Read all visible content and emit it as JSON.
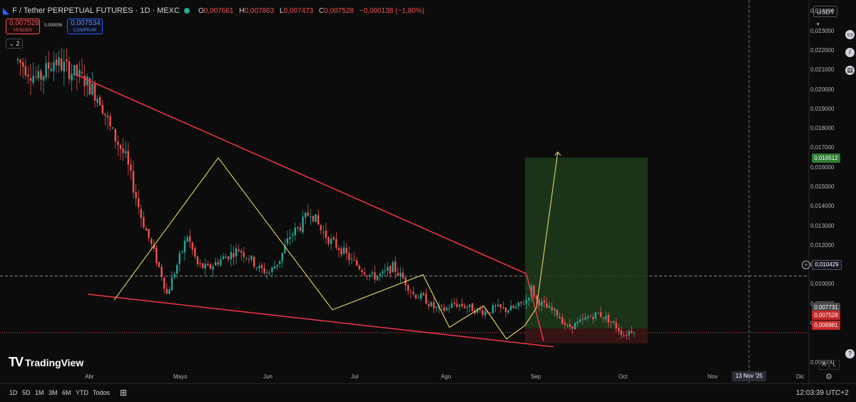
{
  "header": {
    "symbol": "F / Tether PERPETUAL FUTURES · 1D · MEXC",
    "ohlc": [
      {
        "key": "O",
        "value": "0,007661"
      },
      {
        "key": "H",
        "value": "0,007863"
      },
      {
        "key": "L",
        "value": "0,007473"
      },
      {
        "key": "C",
        "value": "0,007528"
      },
      {
        "key": "",
        "value": "−0,000138 (−1,80%)"
      }
    ],
    "sell_price": "0,007528",
    "sell_label": "VENDER",
    "buy_price": "0,007534",
    "buy_label": "COMPRAR",
    "spread": "0,000006",
    "indicator_count": "2"
  },
  "currency": "USDT",
  "price_axis": [
    "0,024000",
    "0,023000",
    "0,022000",
    "0,021000",
    "0,020000",
    "0,019000",
    "0,018000",
    "0,017000",
    "0,016000",
    "0,015000",
    "0,014000",
    "0,013000",
    "0,012000",
    "0,011000",
    "0,010000",
    "0,009000",
    "0,008000",
    "0,006000"
  ],
  "price_tags": {
    "target": "0,016512",
    "crosshair": "0,010429",
    "stop_top": "0,007731",
    "last": "0,007528",
    "stop": "0,006981"
  },
  "time_axis": [
    "Abr",
    "Mayo",
    "Jun",
    "Jul",
    "Ago",
    "Sep",
    "Oct",
    "Nov",
    "Dic"
  ],
  "time_highlight": "13 Nov '25",
  "ranges": [
    "1D",
    "5D",
    "1M",
    "3M",
    "6M",
    "YTD",
    "Todos"
  ],
  "clock": "12:03:39 UTC+2",
  "branding": "TradingView",
  "axis_buttons": [
    "A",
    "L"
  ],
  "colors": {
    "up": "#26a69a",
    "down": "#ef5350",
    "trend": "#f23645",
    "wave": "#e6d36b",
    "target_zone": "#1e3b1c",
    "stop_zone": "#3b1414"
  },
  "chart_data": {
    "type": "candlestick",
    "y_range": [
      0.0058,
      0.0246
    ],
    "x_start_month": "Mar",
    "x_ticks": [
      "Abr",
      "Mayo",
      "Jun",
      "Jul",
      "Ago",
      "Sep",
      "Oct",
      "Nov",
      "Dic"
    ],
    "anchors": [
      [
        0,
        0.0215
      ],
      [
        8,
        0.0205
      ],
      [
        14,
        0.0215
      ],
      [
        20,
        0.021
      ],
      [
        26,
        0.0205
      ],
      [
        32,
        0.0195
      ],
      [
        36,
        0.018
      ],
      [
        42,
        0.0165
      ],
      [
        48,
        0.0135
      ],
      [
        52,
        0.012
      ],
      [
        56,
        0.0105
      ],
      [
        58,
        0.0095
      ],
      [
        62,
        0.011
      ],
      [
        66,
        0.0125
      ],
      [
        70,
        0.011
      ],
      [
        74,
        0.0108
      ],
      [
        78,
        0.0112
      ],
      [
        82,
        0.0115
      ],
      [
        86,
        0.0118
      ],
      [
        90,
        0.0114
      ],
      [
        94,
        0.0108
      ],
      [
        98,
        0.0106
      ],
      [
        102,
        0.0113
      ],
      [
        106,
        0.0125
      ],
      [
        110,
        0.013
      ],
      [
        114,
        0.0138
      ],
      [
        118,
        0.0128
      ],
      [
        122,
        0.0122
      ],
      [
        126,
        0.0118
      ],
      [
        130,
        0.0112
      ],
      [
        134,
        0.0108
      ],
      [
        138,
        0.0104
      ],
      [
        142,
        0.0105
      ],
      [
        146,
        0.0109
      ],
      [
        150,
        0.0103
      ],
      [
        154,
        0.0095
      ],
      [
        158,
        0.0093
      ],
      [
        162,
        0.0088
      ],
      [
        166,
        0.0087
      ],
      [
        170,
        0.009
      ],
      [
        174,
        0.0089
      ],
      [
        178,
        0.0087
      ],
      [
        182,
        0.0086
      ],
      [
        186,
        0.0088
      ],
      [
        190,
        0.0087
      ],
      [
        194,
        0.0088
      ],
      [
        198,
        0.0092
      ],
      [
        200,
        0.0098
      ],
      [
        202,
        0.0092
      ],
      [
        206,
        0.0088
      ],
      [
        210,
        0.0085
      ],
      [
        214,
        0.0078
      ],
      [
        218,
        0.008
      ],
      [
        222,
        0.0083
      ],
      [
        226,
        0.0085
      ],
      [
        230,
        0.0082
      ],
      [
        234,
        0.0077
      ],
      [
        236,
        0.0074
      ],
      [
        238,
        0.0076
      ],
      [
        240,
        0.0077
      ]
    ]
  }
}
